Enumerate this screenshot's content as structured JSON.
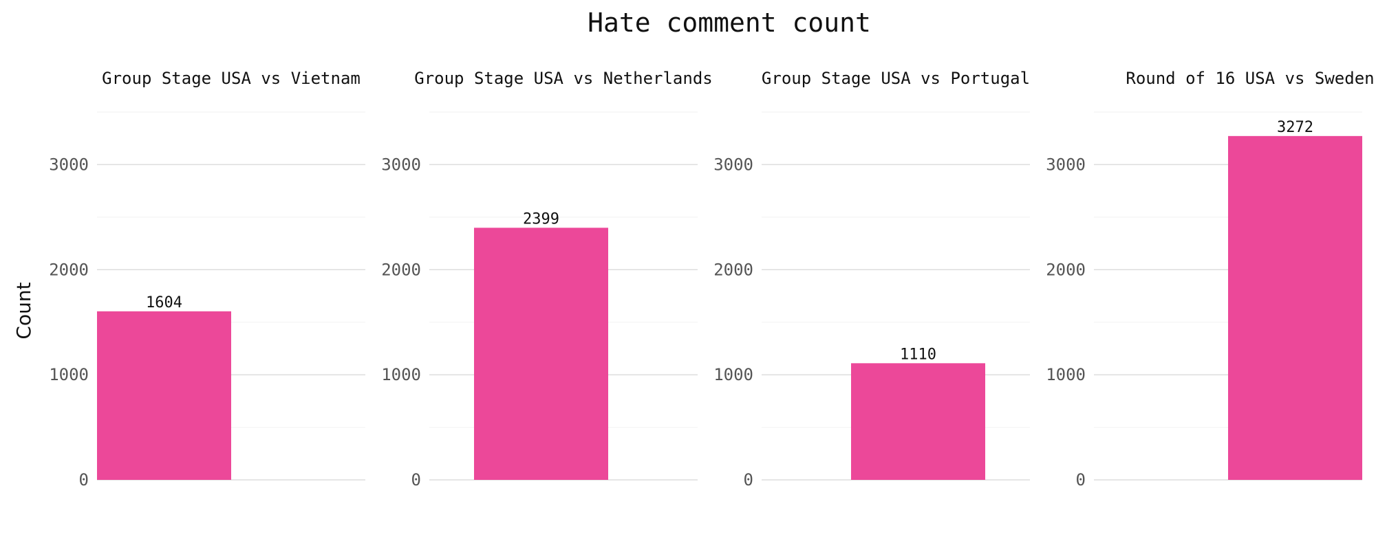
{
  "chart_data": {
    "type": "bar",
    "title": "Hate comment count",
    "ylabel": "Count",
    "ylim": [
      0,
      3500
    ],
    "yticks": [
      0,
      1000,
      2000,
      3000
    ],
    "grid": true,
    "bar_color": "#EC4899",
    "panels": [
      {
        "title": "Group Stage USA vs Vietnam",
        "value": 1604,
        "value_label": "1604",
        "slot": 0
      },
      {
        "title": "Group Stage USA vs Netherlands",
        "value": 2399,
        "value_label": "2399",
        "slot": 1
      },
      {
        "title": "Group Stage USA vs Portugal",
        "value": 1110,
        "value_label": "1110",
        "slot": 2
      },
      {
        "title": "Round of 16 USA vs Sweden",
        "value": 3272,
        "value_label": "3272",
        "slot": 3
      }
    ]
  }
}
